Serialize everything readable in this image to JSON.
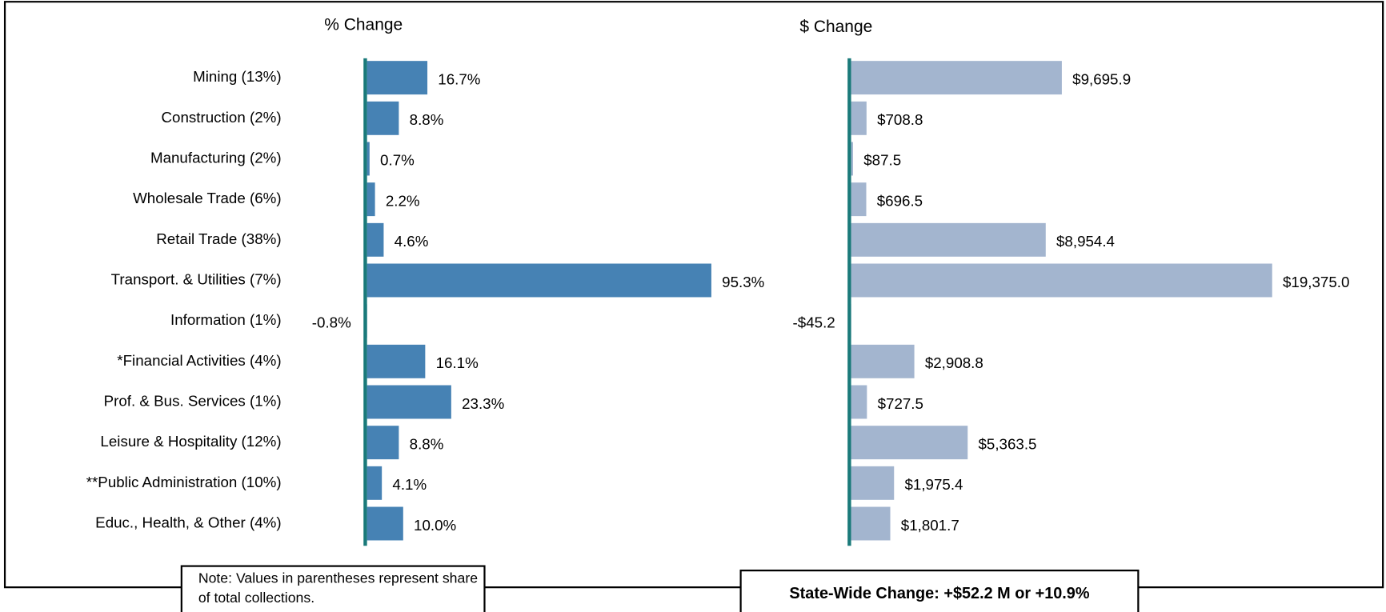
{
  "chart_data": [
    {
      "type": "bar",
      "orientation": "horizontal",
      "title": "% Change",
      "categories": [
        "Mining (13%)",
        "Construction (2%)",
        "Manufacturing (2%)",
        "Wholesale Trade (6%)",
        "Retail Trade (38%)",
        "Transport. & Utilities (7%)",
        "Information (1%)",
        "*Financial Activities (4%)",
        "Prof. & Bus. Services (1%)",
        "Leisure & Hospitality (12%)",
        "**Public Administration (10%)",
        "Educ., Health, & Other (4%)"
      ],
      "values": [
        16.7,
        8.8,
        0.7,
        2.2,
        4.6,
        95.3,
        -0.8,
        16.1,
        23.3,
        8.8,
        4.1,
        10.0
      ],
      "value_labels": [
        "16.7%",
        "8.8%",
        "0.7%",
        "2.2%",
        "4.6%",
        "95.3%",
        "-0.8%",
        "16.1%",
        "23.3%",
        "8.8%",
        "4.1%",
        "10.0%"
      ],
      "color": "#4682b4",
      "xlim": [
        0,
        100
      ]
    },
    {
      "type": "bar",
      "orientation": "horizontal",
      "title": "$ Change",
      "categories": [
        "Mining (13%)",
        "Construction (2%)",
        "Manufacturing (2%)",
        "Wholesale Trade (6%)",
        "Retail Trade (38%)",
        "Transport. & Utilities (7%)",
        "Information (1%)",
        "*Financial Activities (4%)",
        "Prof. & Bus. Services (1%)",
        "Leisure & Hospitality (12%)",
        "**Public Administration (10%)",
        "Educ., Health, & Other (4%)"
      ],
      "values": [
        9695.9,
        708.8,
        87.5,
        696.5,
        8954.4,
        19375.0,
        -45.2,
        2908.8,
        727.5,
        5363.5,
        1975.4,
        1801.7
      ],
      "value_labels": [
        "$9,695.9",
        "$708.8",
        "$87.5",
        "$696.5",
        "$8,954.4",
        "$19,375.0",
        "-$45.2",
        "$2,908.8",
        "$727.5",
        "$5,363.5",
        "$1,975.4",
        "$1,801.7"
      ],
      "color": "#a3b5cf",
      "xlim": [
        0,
        20000
      ]
    }
  ],
  "annotations": [
    "Note: Values in parentheses represent share of total collections.",
    "State-Wide Change: +$52.2 M or +10.9%"
  ]
}
